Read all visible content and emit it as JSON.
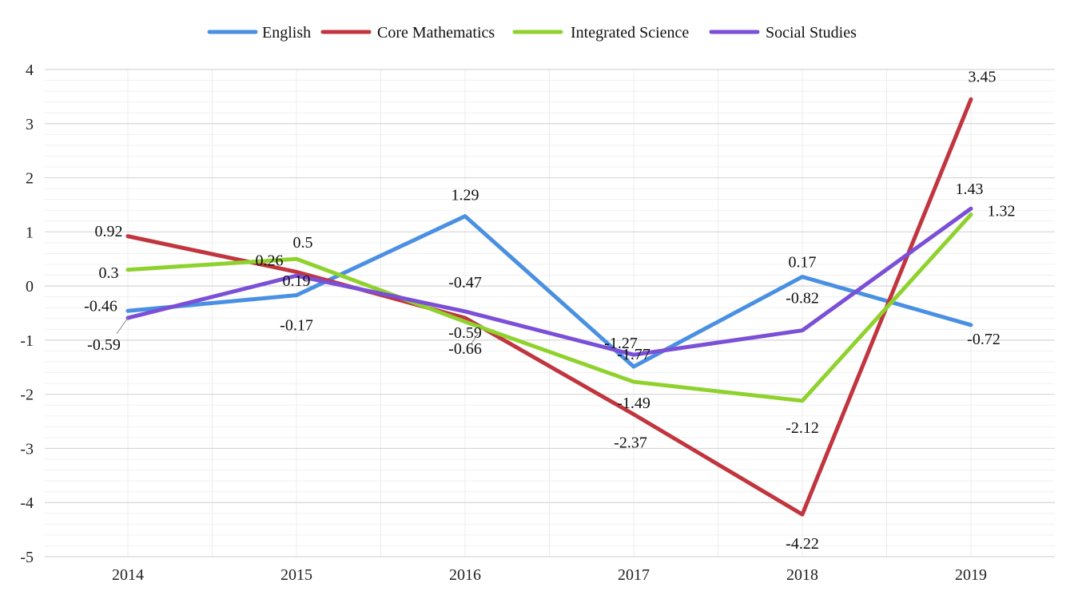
{
  "chart_data": {
    "type": "line",
    "title": "",
    "xlabel": "",
    "ylabel": "",
    "categories": [
      "2014",
      "2015",
      "2016",
      "2017",
      "2018",
      "2019"
    ],
    "ylim": [
      -5,
      4
    ],
    "yticks": [
      4,
      3,
      2,
      1,
      0,
      -1,
      -2,
      -3,
      -4,
      -5
    ],
    "grid": true,
    "legend_position": "top-center",
    "series": [
      {
        "name": "English",
        "color": "#4a90e2",
        "values": [
          -0.46,
          -0.17,
          1.29,
          -1.49,
          0.17,
          -0.72
        ],
        "labels": [
          "-0.46",
          "-0.17",
          "1.29",
          "-1.49",
          "0.17",
          "-0.72"
        ]
      },
      {
        "name": "Core Mathematics",
        "color": "#c1353f",
        "values": [
          0.92,
          0.26,
          -0.59,
          -2.37,
          -4.22,
          3.45
        ],
        "labels": [
          "0.92",
          "0.26",
          "-0.59",
          "-2.37",
          "-4.22",
          "3.45"
        ]
      },
      {
        "name": "Integrated Science",
        "color": "#8fd22e",
        "values": [
          0.3,
          0.5,
          -0.66,
          -1.77,
          -2.12,
          1.32
        ],
        "labels": [
          "0.3",
          "0.5",
          "-0.66",
          "-1.77",
          "-2.12",
          "1.32"
        ]
      },
      {
        "name": "Social Studies",
        "color": "#7b4fd6",
        "values": [
          -0.59,
          0.19,
          -0.47,
          -1.27,
          -0.82,
          1.43
        ],
        "labels": [
          "-0.59",
          "0.19",
          "-0.47",
          "-1.27",
          "-0.82",
          "1.43"
        ]
      }
    ]
  }
}
